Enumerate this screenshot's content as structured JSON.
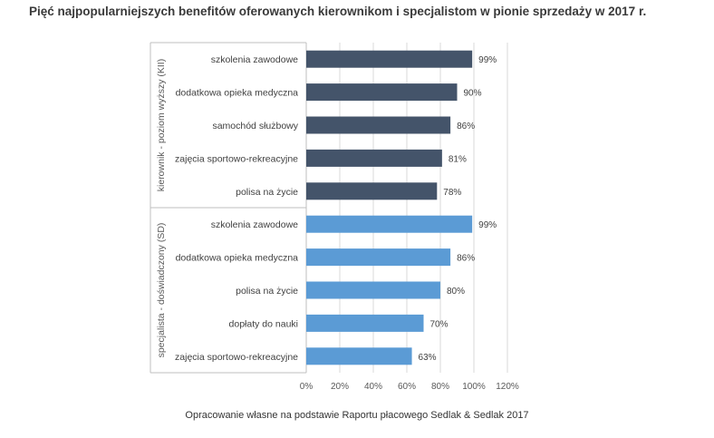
{
  "title": "Pięć najpopularniejszych benefitów oferowanych kierownikom i specjalistom w pionie sprzedaży w 2017 r.",
  "source": "Opracowanie własne na podstawie Raportu płacowego Sedlak & Sedlak 2017",
  "colors": {
    "group1": "#44546a",
    "group2": "#5b9bd5"
  },
  "chart_data": {
    "type": "bar",
    "orientation": "horizontal",
    "xlim": [
      0,
      120
    ],
    "x_ticks": [
      "0%",
      "20%",
      "40%",
      "60%",
      "80%",
      "100%",
      "120%"
    ],
    "value_suffix": "%",
    "grid": true,
    "groups": [
      {
        "name": "kierownik - poziom wyższy (KII)",
        "categories": [
          "szkolenia zawodowe",
          "dodatkowa opieka medyczna",
          "samochód służbowy",
          "zajęcia sportowo-rekreacyjne",
          "polisa na życie"
        ],
        "values": [
          99,
          90,
          86,
          81,
          78
        ]
      },
      {
        "name": "specjalista - doświadczony (SD)",
        "categories": [
          "szkolenia zawodowe",
          "dodatkowa opieka medyczna",
          "polisa na życie",
          "dopłaty do nauki",
          "zajęcia sportowo-rekreacyjne"
        ],
        "values": [
          99,
          86,
          80,
          70,
          63
        ]
      }
    ]
  }
}
